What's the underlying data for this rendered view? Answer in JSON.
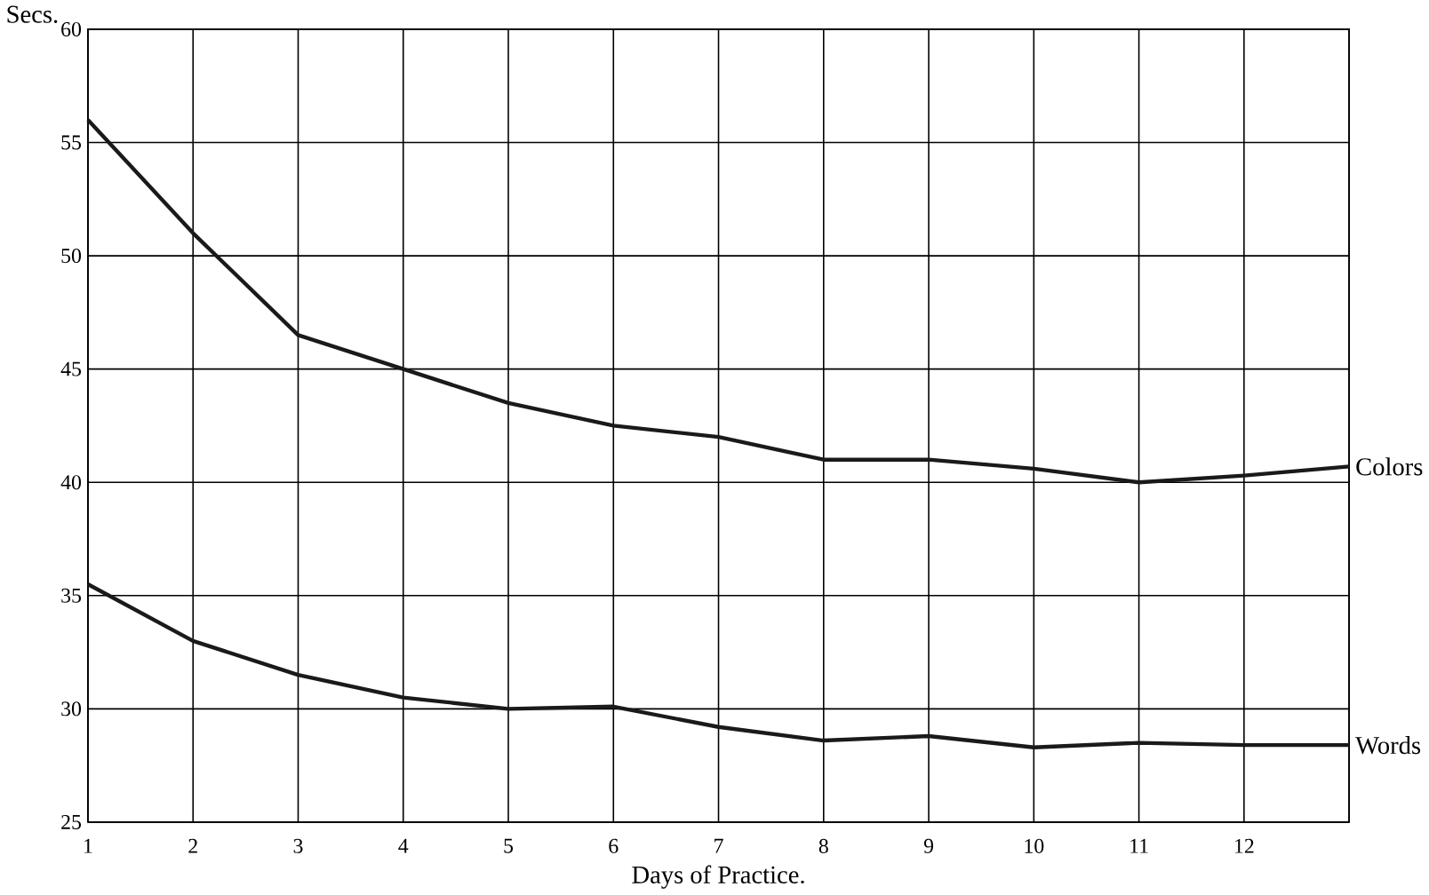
{
  "chart_data": {
    "type": "line",
    "xlabel": "Days of Practice.",
    "ylabel": "Secs.",
    "x": [
      1,
      2,
      3,
      4,
      5,
      6,
      7,
      8,
      9,
      10,
      11,
      12,
      13
    ],
    "xlim": [
      1,
      13
    ],
    "xticks": [
      1,
      2,
      3,
      4,
      5,
      6,
      7,
      8,
      9,
      10,
      11,
      12,
      {
        "value": 13,
        "label": null
      }
    ],
    "ylim": [
      25,
      60
    ],
    "yticks": [
      25,
      30,
      35,
      40,
      45,
      50,
      55,
      60
    ],
    "grid": true,
    "legend": false,
    "marker": "none",
    "line_style": "solid",
    "series": [
      {
        "name": "Colors",
        "color": "#1a1a1a",
        "values": [
          56,
          51,
          46.5,
          45,
          43.5,
          42.5,
          42,
          41,
          41,
          40.6,
          40,
          40.3,
          40.7
        ]
      },
      {
        "name": "Words",
        "color": "#1a1a1a",
        "values": [
          35.5,
          33,
          31.5,
          30.5,
          30,
          30.1,
          29.2,
          28.6,
          28.8,
          28.3,
          28.5,
          28.4,
          28.4
        ]
      }
    ]
  }
}
